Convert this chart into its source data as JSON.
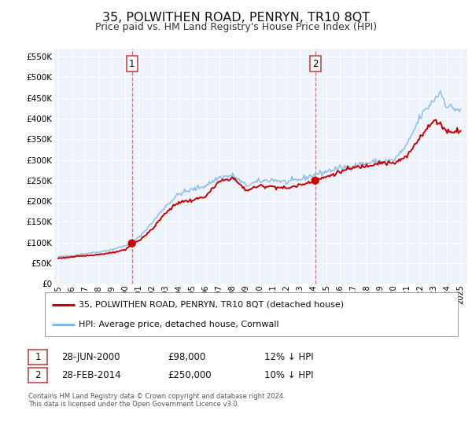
{
  "title": "35, POLWITHEN ROAD, PENRYN, TR10 8QT",
  "subtitle": "Price paid vs. HM Land Registry's House Price Index (HPI)",
  "title_fontsize": 11.5,
  "subtitle_fontsize": 9,
  "background_color": "#ffffff",
  "plot_background_color": "#eef2fb",
  "grid_color": "#ffffff",
  "xlim": [
    1994.7,
    2025.5
  ],
  "ylim": [
    0,
    570000
  ],
  "yticks": [
    0,
    50000,
    100000,
    150000,
    200000,
    250000,
    300000,
    350000,
    400000,
    450000,
    500000,
    550000
  ],
  "ytick_labels": [
    "£0",
    "£50K",
    "£100K",
    "£150K",
    "£200K",
    "£250K",
    "£300K",
    "£350K",
    "£400K",
    "£450K",
    "£500K",
    "£550K"
  ],
  "xticks": [
    1995,
    1996,
    1997,
    1998,
    1999,
    2000,
    2001,
    2002,
    2003,
    2004,
    2005,
    2006,
    2007,
    2008,
    2009,
    2010,
    2011,
    2012,
    2013,
    2014,
    2015,
    2016,
    2017,
    2018,
    2019,
    2020,
    2021,
    2022,
    2023,
    2024,
    2025
  ],
  "sale1_x": 2000.49,
  "sale1_y": 98000,
  "sale1_label": "1",
  "sale1_date": "28-JUN-2000",
  "sale1_price": "£98,000",
  "sale1_hpi": "12% ↓ HPI",
  "sale2_x": 2014.16,
  "sale2_y": 250000,
  "sale2_label": "2",
  "sale2_date": "28-FEB-2014",
  "sale2_price": "£250,000",
  "sale2_hpi": "10% ↓ HPI",
  "sale_dot_color": "#cc0000",
  "hpi_line_color": "#82b8e8",
  "price_line_color": "#cc0000",
  "legend_label1": "35, POLWITHEN ROAD, PENRYN, TR10 8QT (detached house)",
  "legend_label2": "HPI: Average price, detached house, Cornwall",
  "footer1": "Contains HM Land Registry data © Crown copyright and database right 2024.",
  "footer2": "This data is licensed under the Open Government Licence v3.0."
}
